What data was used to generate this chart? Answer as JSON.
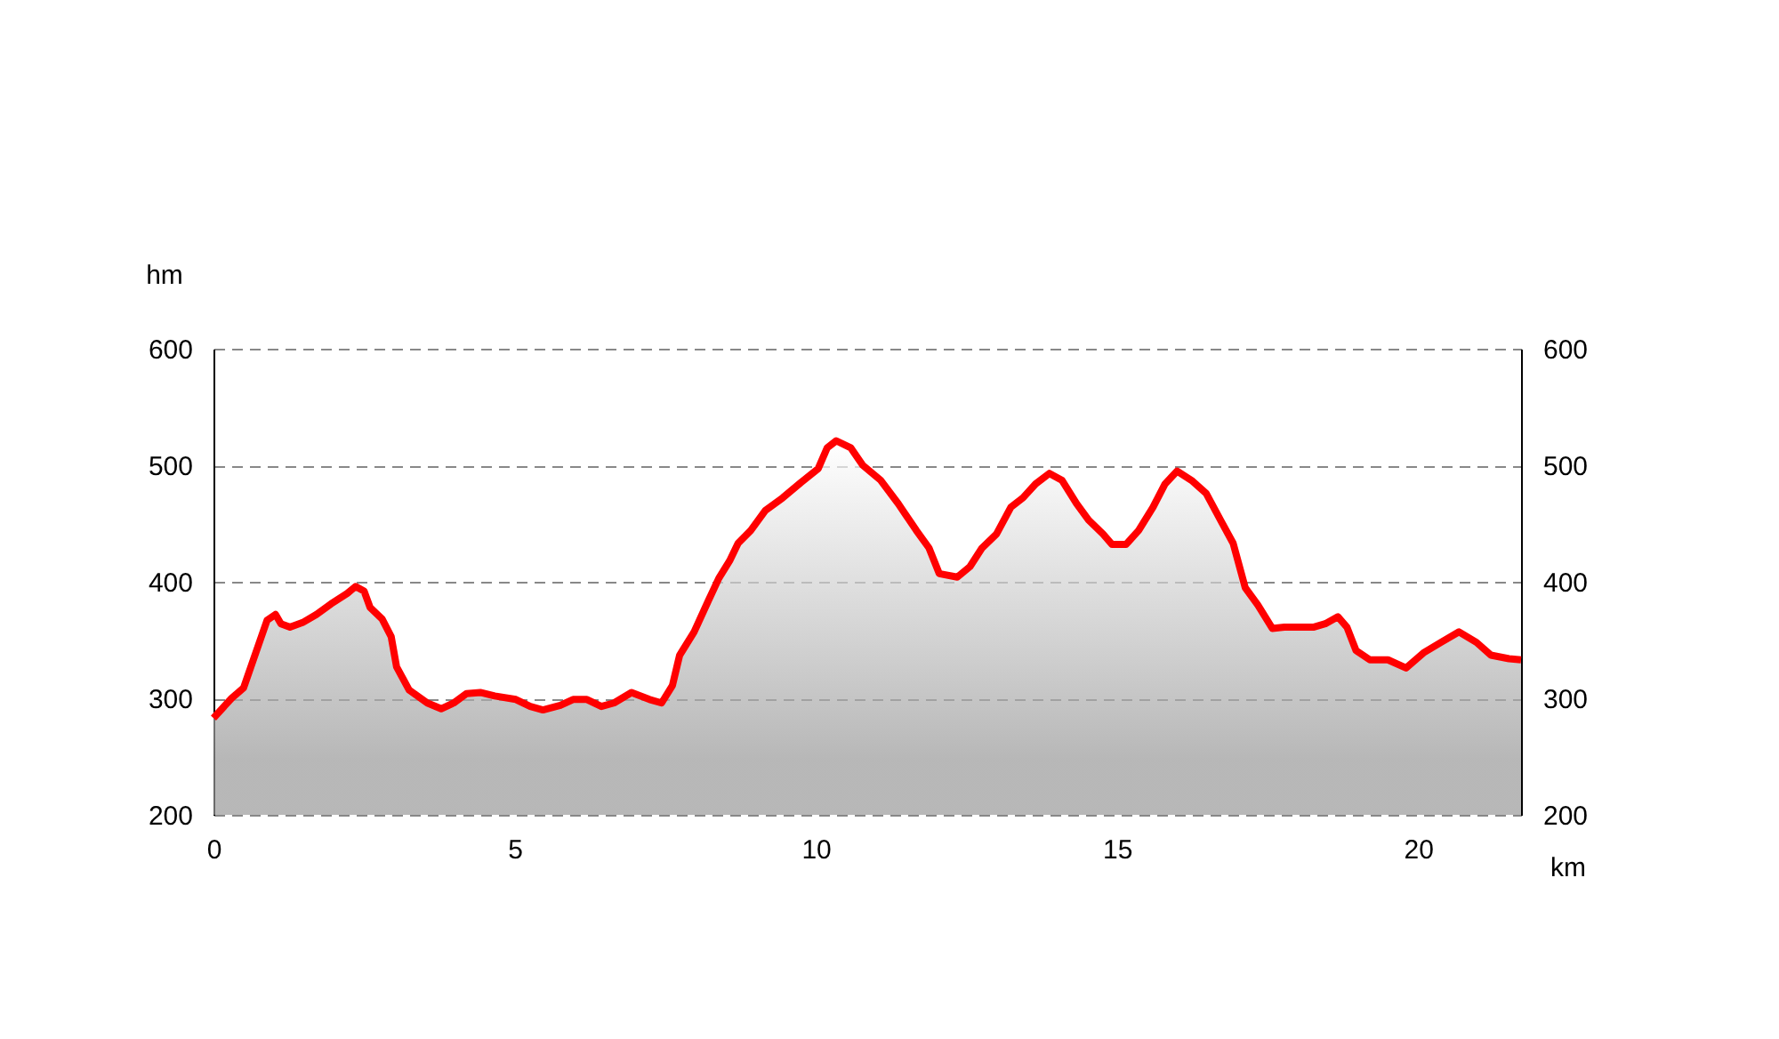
{
  "chart_data": {
    "type": "area",
    "xlabel": "km",
    "ylabel": "hm",
    "x": [
      0,
      0.3,
      0.5,
      0.89,
      1.03,
      1.12,
      1.27,
      1.48,
      1.71,
      1.95,
      2.22,
      2.36,
      2.5,
      2.6,
      2.8,
      2.95,
      3.04,
      3.25,
      3.55,
      3.78,
      3.99,
      4.2,
      4.43,
      4.67,
      5.02,
      5.26,
      5.47,
      5.76,
      5.97,
      6.2,
      6.44,
      6.65,
      6.94,
      7.24,
      7.44,
      7.62,
      7.74,
      7.98,
      8.21,
      8.39,
      8.57,
      8.71,
      8.92,
      9.16,
      9.45,
      9.75,
      10.04,
      10.19,
      10.34,
      10.58,
      10.78,
      11.08,
      11.37,
      11.67,
      11.88,
      12.05,
      12.35,
      12.56,
      12.76,
      13.0,
      13.24,
      13.44,
      13.65,
      13.88,
      14.09,
      14.33,
      14.53,
      14.77,
      14.92,
      15.15,
      15.36,
      15.6,
      15.8,
      16.0,
      16.24,
      16.48,
      16.72,
      16.93,
      17.13,
      17.34,
      17.58,
      17.78,
      18.02,
      18.26,
      18.46,
      18.67,
      18.82,
      18.97,
      19.2,
      19.5,
      19.8,
      20.09,
      20.38,
      20.68,
      20.97,
      21.21,
      21.51,
      21.71
    ],
    "series": [
      {
        "color": "#ff0000",
        "values": [
          283,
          300,
          309,
          367,
          372,
          364,
          361,
          365,
          372,
          381,
          390,
          396,
          392,
          378,
          368,
          353,
          327,
          307,
          296,
          291,
          296,
          304,
          305,
          302,
          299,
          293,
          290,
          294,
          299,
          299,
          293,
          296,
          305,
          299,
          296,
          311,
          337,
          357,
          383,
          403,
          418,
          433,
          444,
          461,
          472,
          485,
          497,
          515,
          521,
          515,
          500,
          487,
          467,
          444,
          429,
          407,
          404,
          413,
          429,
          441,
          464,
          472,
          484,
          493,
          487,
          467,
          453,
          441,
          432,
          432,
          444,
          464,
          484,
          495,
          487,
          476,
          453,
          433,
          395,
          380,
          360,
          361,
          361,
          361,
          364,
          370,
          361,
          341,
          333,
          333,
          326,
          339,
          348,
          357,
          348,
          337,
          334,
          333
        ]
      }
    ],
    "xlim": [
      0,
      21.71
    ],
    "xticks": [
      0,
      5,
      10,
      15,
      20
    ],
    "ylim": [
      200,
      600
    ],
    "yticks": [
      200,
      300,
      400,
      500,
      600
    ],
    "y2lim": [
      200,
      600
    ],
    "y2ticks": [
      200,
      300,
      400,
      500,
      600
    ],
    "grid": "y",
    "line_style": "solid"
  }
}
